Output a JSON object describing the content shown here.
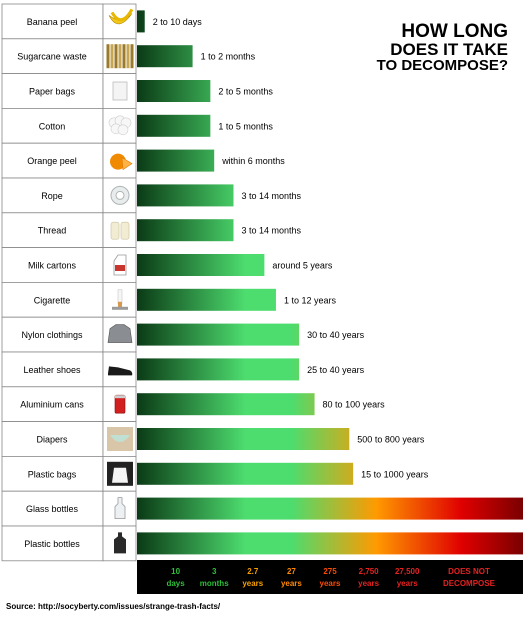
{
  "title_lines": [
    "HOW LONG",
    "DOES IT TAKE",
    "TO DECOMPOSE?"
  ],
  "source": "Source: http://socyberty.com/issues/strange-trash-facts/",
  "chart_data": {
    "type": "bar",
    "orientation": "horizontal",
    "categories": [
      "Banana peel",
      "Sugarcane waste",
      "Paper bags",
      "Cotton",
      "Orange peel",
      "Rope",
      "Thread",
      "Milk cartons",
      "Cigarette",
      "Nylon clothings",
      "Leather shoes",
      "Aluminium cans",
      "Diapers",
      "Plastic bags",
      "Glass bottles",
      "Plastic bottles"
    ],
    "icons": [
      "banana-icon",
      "sugarcane-icon",
      "paper-bag-icon",
      "cotton-icon",
      "orange-icon",
      "rope-icon",
      "thread-icon",
      "milk-carton-icon",
      "cigarette-icon",
      "jacket-icon",
      "shoe-icon",
      "can-icon",
      "diaper-icon",
      "plastic-bag-icon",
      "glass-bottle-icon",
      "plastic-bottle-icon"
    ],
    "labels": [
      "2 to 10 days",
      "1 to 2 months",
      "2 to 5 months",
      "1 to 5 months",
      "within 6 months",
      "3 to 14 months",
      "3 to 14 months",
      "around 5 years",
      "1 to 12 years",
      "30 to 40 years",
      "25 to 40 years",
      "80 to 100 years",
      "500 to 800 years",
      "15 to 1000 years",
      "",
      ""
    ],
    "scale_position": [
      0.1,
      0.72,
      0.95,
      0.95,
      1.0,
      1.25,
      1.25,
      1.65,
      1.8,
      2.1,
      2.1,
      2.3,
      2.75,
      2.8,
      5.0,
      5.0
    ],
    "scale_ticks": [
      {
        "position": 0.5,
        "line1": "10",
        "line2": "days",
        "color": "#2fbf3a"
      },
      {
        "position": 1.0,
        "line1": "3",
        "line2": "months",
        "color": "#2fbf3a"
      },
      {
        "position": 1.5,
        "line1": "2.7",
        "line2": "years",
        "color": "#f5a100"
      },
      {
        "position": 2.0,
        "line1": "27",
        "line2": "years",
        "color": "#ff8a00"
      },
      {
        "position": 2.5,
        "line1": "275",
        "line2": "years",
        "color": "#ff4a00"
      },
      {
        "position": 3.0,
        "line1": "2,750",
        "line2": "years",
        "color": "#e52222"
      },
      {
        "position": 3.5,
        "line1": "27,500",
        "line2": "years",
        "color": "#e52222"
      },
      {
        "position": 4.3,
        "line1": "DOES NOT",
        "line2": "DECOMPOSE",
        "color": "#e52222"
      }
    ],
    "colors": {
      "start": "#0b3a16",
      "green": "#4ddc6e",
      "orange": "#ff9a00",
      "red": "#e00000",
      "darkred": "#7a0000",
      "scale_bg": "#000000"
    }
  }
}
